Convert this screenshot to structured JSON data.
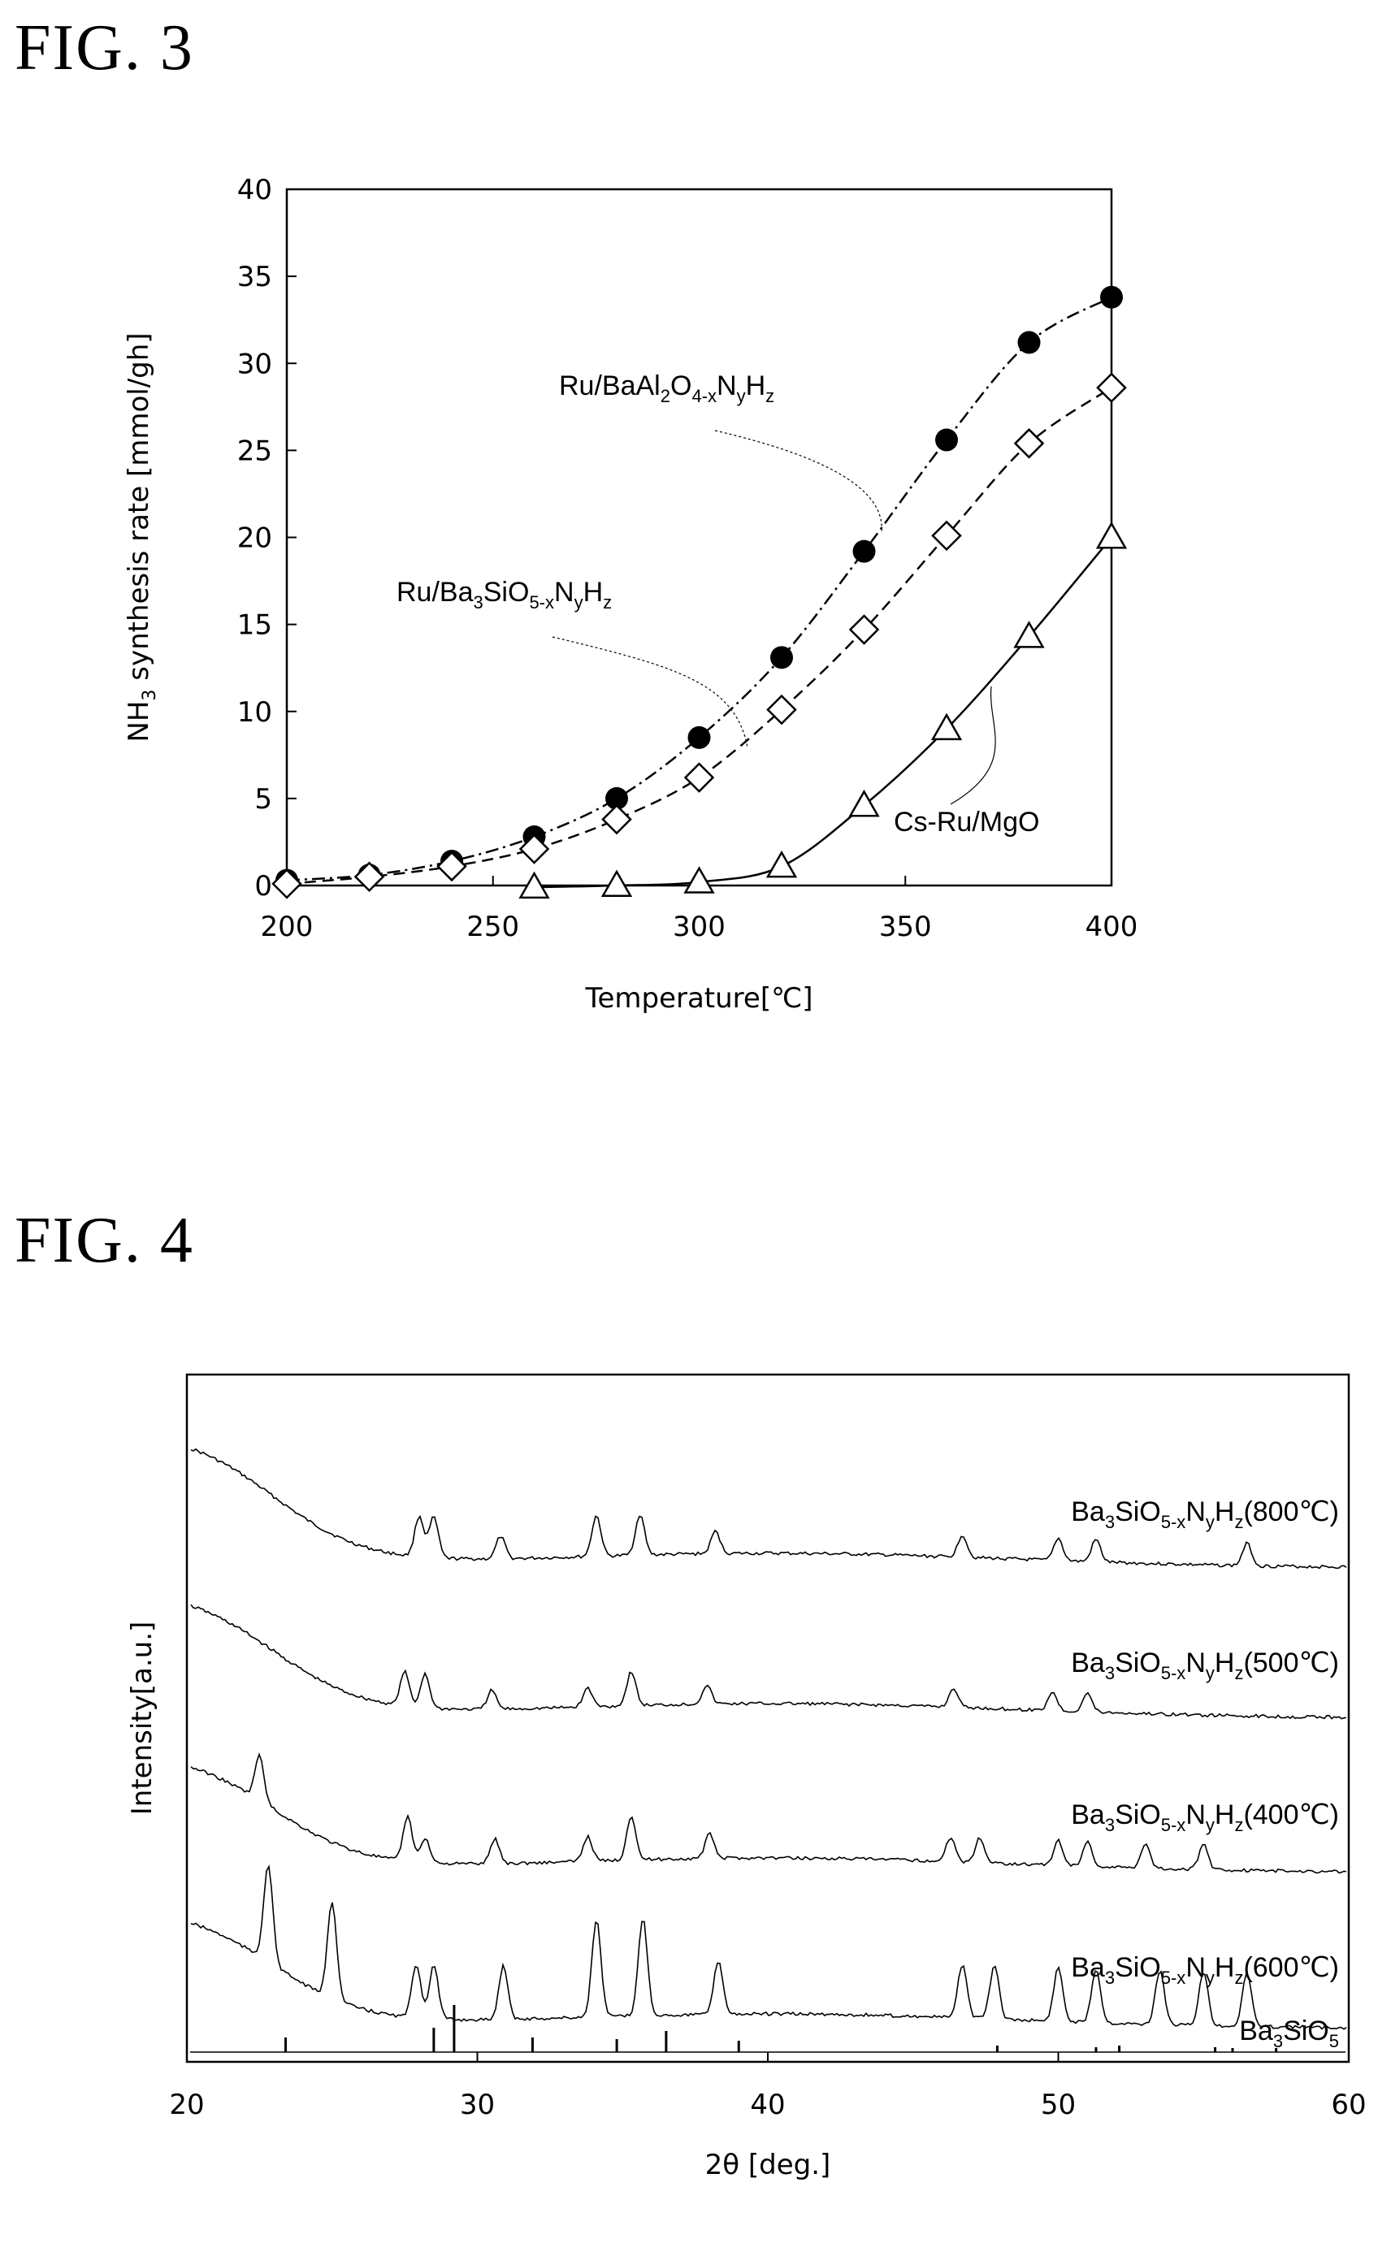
{
  "chart_data": [
    {
      "figure_label": "FIG.  3",
      "type": "line",
      "xlabel": "Temperature[℃]",
      "ylabel": "NH3 synthesis rate [mmol/gh]",
      "xlim": [
        200,
        400
      ],
      "ylim": [
        0,
        40
      ],
      "x_ticks": [
        "200",
        "250",
        "300",
        "350",
        "400"
      ],
      "y_ticks": [
        "0",
        "5",
        "10",
        "15",
        "20",
        "25",
        "30",
        "35",
        "40"
      ],
      "grid": false,
      "series": [
        {
          "name": "Ru/BaAl2O4-xNyHz",
          "marker": "filled-circle",
          "line_style": "dash-dot",
          "x": [
            200,
            220,
            240,
            260,
            280,
            300,
            320,
            340,
            360,
            380,
            400
          ],
          "y": [
            0.3,
            0.6,
            1.4,
            2.8,
            5.0,
            8.5,
            13.1,
            19.2,
            25.6,
            31.2,
            33.8
          ]
        },
        {
          "name": "Ru/Ba3SiO5-xNyHz",
          "marker": "open-diamond",
          "line_style": "dashed",
          "x": [
            200,
            220,
            240,
            260,
            280,
            300,
            320,
            340,
            360,
            380,
            400
          ],
          "y": [
            0.1,
            0.5,
            1.1,
            2.1,
            3.8,
            6.2,
            10.1,
            14.7,
            20.1,
            25.4,
            28.6
          ]
        },
        {
          "name": "Cs-Ru/MgO",
          "marker": "open-triangle",
          "line_style": "solid",
          "x": [
            260,
            280,
            300,
            320,
            340,
            360,
            380,
            400
          ],
          "y": [
            -0.1,
            0.0,
            0.2,
            1.1,
            4.6,
            9.0,
            14.3,
            20.0
          ]
        }
      ]
    },
    {
      "figure_label": "FIG.  4",
      "type": "line",
      "xlabel": "2θ [deg.]",
      "ylabel": "Intensity[a.u.]",
      "xlim": [
        20,
        60
      ],
      "x_ticks": [
        "20",
        "30",
        "40",
        "50",
        "60"
      ],
      "grid": false,
      "series": [
        {
          "name": "Ba3SiO5-xNyHz(800℃)",
          "peaks": [
            28.0,
            28.5,
            30.8,
            34.1,
            35.6,
            38.2,
            46.7,
            50.0,
            51.3,
            56.5
          ]
        },
        {
          "name": "Ba3SiO5-xNyHz(500℃)",
          "peaks": [
            27.5,
            28.2,
            30.5,
            33.8,
            35.3,
            37.9,
            46.4,
            49.8,
            51.0
          ]
        },
        {
          "name": "Ba3SiO5-xNyHz(400℃)",
          "peaks": [
            22.5,
            27.6,
            28.2,
            30.6,
            33.8,
            35.3,
            38.0,
            46.3,
            47.3,
            50.0,
            51.0,
            53.0,
            55.0
          ]
        },
        {
          "name": "Ba3SiO5-xNyHz(600℃)",
          "peaks": [
            22.8,
            25.0,
            27.9,
            28.5,
            30.9,
            34.1,
            35.7,
            38.3,
            46.7,
            47.8,
            50.0,
            51.3,
            53.5,
            55.0,
            56.5
          ]
        },
        {
          "name": "Ba3SiO5",
          "peaks": [
            23.4,
            28.5,
            29.2,
            31.9,
            34.8,
            36.5,
            39.0,
            47.9,
            51.3,
            52.1,
            55.4,
            56.0,
            57.5
          ]
        }
      ]
    }
  ]
}
